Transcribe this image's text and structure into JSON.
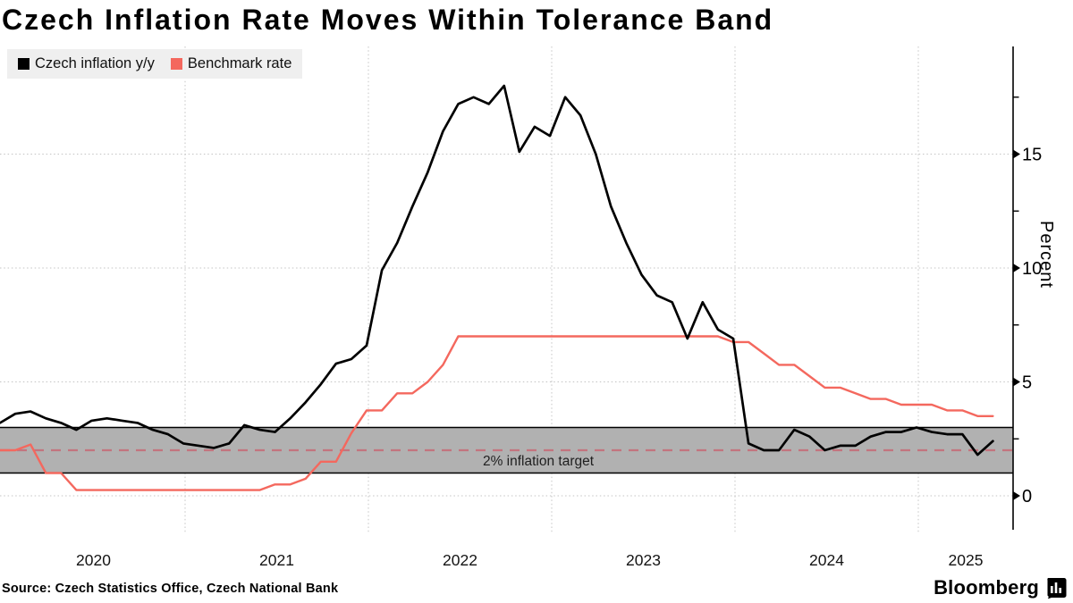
{
  "title": "Czech Inflation Rate Moves Within Tolerance Band",
  "legend": {
    "items": [
      {
        "label": "Czech inflation y/y",
        "color": "#000000"
      },
      {
        "label": "Benchmark rate",
        "color": "#f4685e"
      }
    ]
  },
  "source": "Source: Czech Statistics Office, Czech National Bank",
  "branding": {
    "wordmark": "Bloomberg",
    "logo_icon": "bar-chart-icon"
  },
  "axis": {
    "y_title": "Percent"
  },
  "chart_data": {
    "type": "line",
    "title": "Czech Inflation Rate Moves Within Tolerance Band",
    "ylabel": "Percent",
    "ylim": [
      -1.5,
      19.7
    ],
    "y_ticks": [
      0,
      5,
      10,
      15
    ],
    "y_minor_ticks": [
      2.5,
      7.5,
      12.5,
      17.5
    ],
    "x_tick_years": [
      2020,
      2021,
      2022,
      2023,
      2024,
      2025
    ],
    "x_start_month": "2019-12",
    "x_frequency": "monthly",
    "grid": "dotted major gridlines",
    "legend_position": "top-left",
    "band": {
      "from": 1.0,
      "to": 3.0,
      "target": 2.0,
      "label": "2% inflation target",
      "fill": "#b1b1b1",
      "target_line_color": "#c3747e"
    },
    "series": [
      {
        "name": "Czech inflation y/y",
        "color": "#000000",
        "values": [
          3.2,
          3.6,
          3.7,
          3.4,
          3.2,
          2.9,
          3.3,
          3.4,
          3.3,
          3.2,
          2.9,
          2.7,
          2.3,
          2.2,
          2.1,
          2.3,
          3.1,
          2.9,
          2.8,
          3.4,
          4.1,
          4.9,
          5.8,
          6.0,
          6.6,
          9.9,
          11.1,
          12.7,
          14.2,
          16.0,
          17.2,
          17.5,
          17.2,
          18.0,
          15.1,
          16.2,
          15.8,
          17.5,
          16.7,
          15.0,
          12.7,
          11.1,
          9.7,
          8.8,
          8.5,
          6.9,
          8.5,
          7.3,
          6.9,
          2.3,
          2.0,
          2.0,
          2.9,
          2.6,
          2.0,
          2.2,
          2.2,
          2.6,
          2.8,
          2.8,
          3.0,
          2.8,
          2.7,
          2.7,
          1.8,
          2.4
        ]
      },
      {
        "name": "Benchmark rate",
        "color": "#f4685e",
        "values": [
          2.0,
          2.0,
          2.25,
          1.0,
          1.0,
          0.25,
          0.25,
          0.25,
          0.25,
          0.25,
          0.25,
          0.25,
          0.25,
          0.25,
          0.25,
          0.25,
          0.25,
          0.25,
          0.5,
          0.5,
          0.75,
          1.5,
          1.5,
          2.75,
          3.75,
          3.75,
          4.5,
          4.5,
          5.0,
          5.75,
          7.0,
          7.0,
          7.0,
          7.0,
          7.0,
          7.0,
          7.0,
          7.0,
          7.0,
          7.0,
          7.0,
          7.0,
          7.0,
          7.0,
          7.0,
          7.0,
          7.0,
          7.0,
          6.75,
          6.75,
          6.25,
          5.75,
          5.75,
          5.25,
          4.75,
          4.75,
          4.5,
          4.25,
          4.25,
          4.0,
          4.0,
          4.0,
          3.75,
          3.75,
          3.5,
          3.5
        ]
      }
    ]
  }
}
